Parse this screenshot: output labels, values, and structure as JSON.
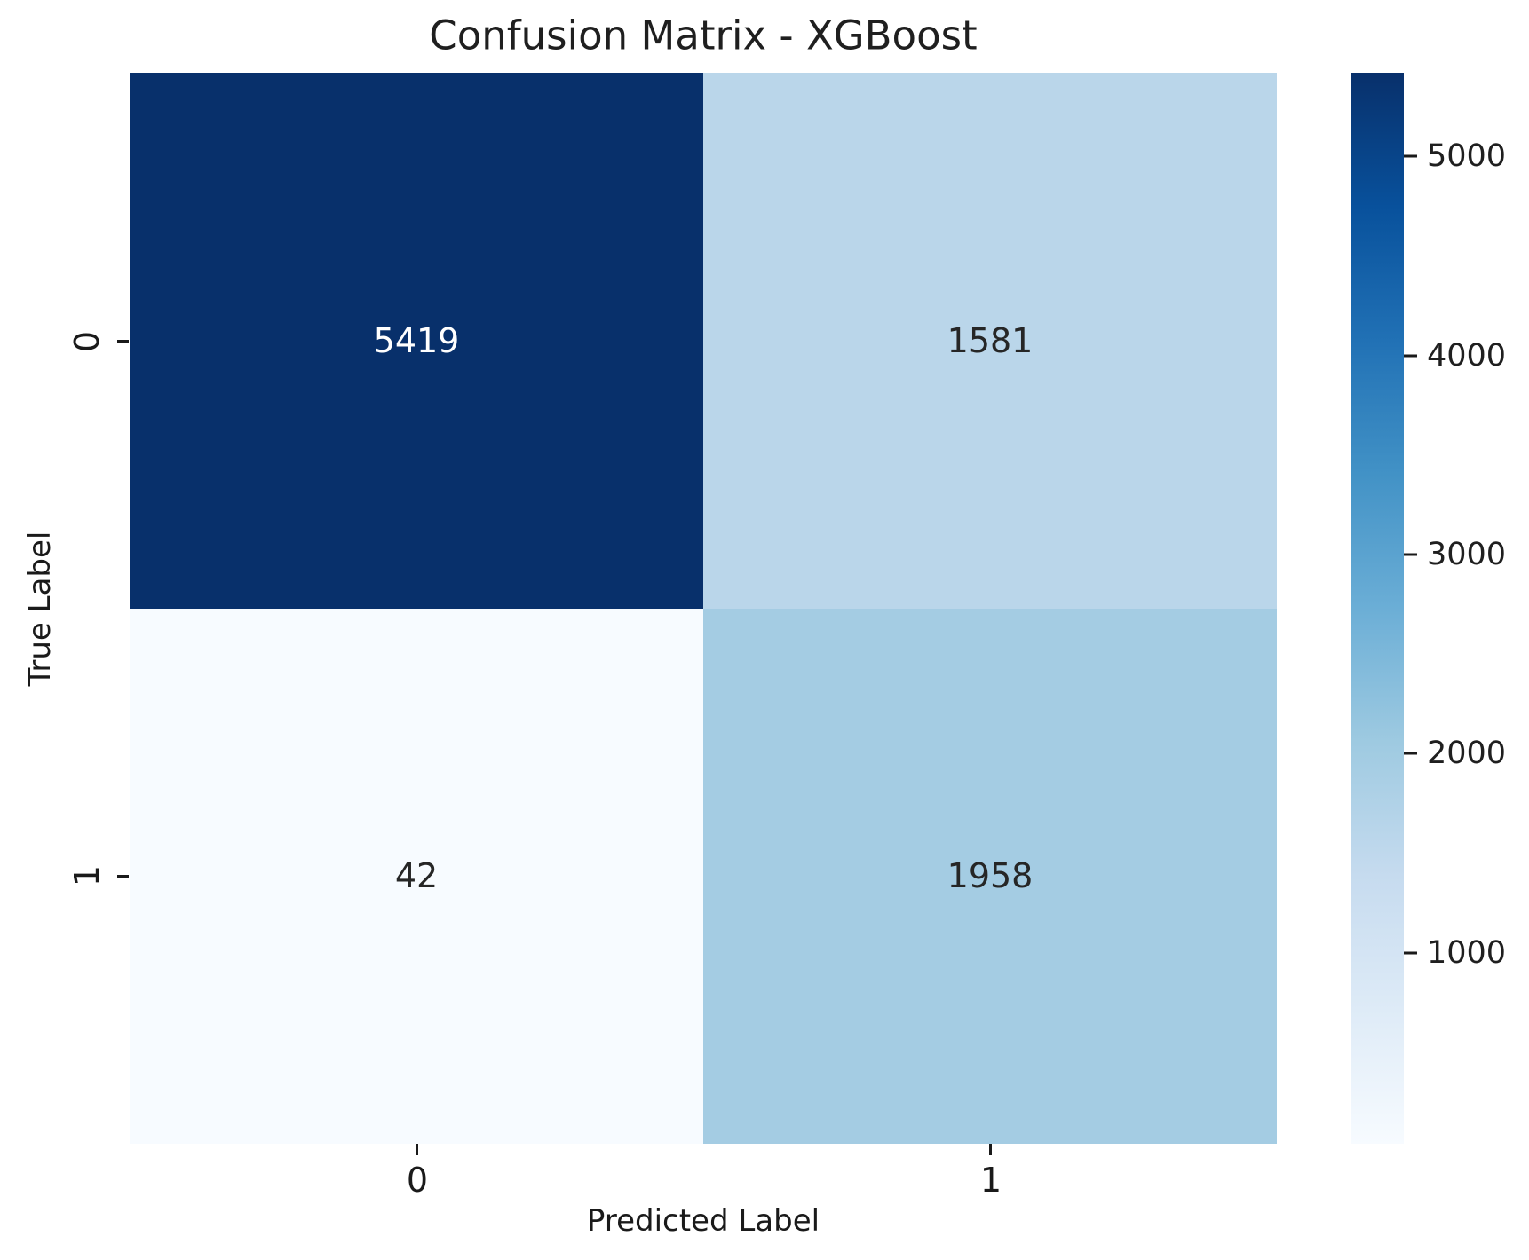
{
  "figure": {
    "title": "Confusion Matrix - XGBoost",
    "xlabel": "Predicted Label",
    "ylabel": "True Label"
  },
  "axes": {
    "x_ticks": [
      "0",
      "1"
    ],
    "y_ticks": [
      "0",
      "1"
    ]
  },
  "cells": [
    {
      "value": "5419",
      "bg": "#08306b",
      "fg": "#ffffff"
    },
    {
      "value": "1581",
      "bg": "#bad6ea",
      "fg": "#262626"
    },
    {
      "value": "42",
      "bg": "#f7fbff",
      "fg": "#262626"
    },
    {
      "value": "1958",
      "bg": "#a4cce3",
      "fg": "#262626"
    }
  ],
  "colorbar": {
    "vmin": 42,
    "vmax": 5419,
    "tick_labels": [
      "5000",
      "4000",
      "3000",
      "2000",
      "1000"
    ],
    "tick_values": [
      5000,
      4000,
      3000,
      2000,
      1000
    ],
    "gradient_stops": [
      "#f7fbff 0%",
      "#deebf7 12.5%",
      "#c6dbef 25%",
      "#9ecae1 37.5%",
      "#6baed6 50%",
      "#4292c6 62.5%",
      "#2171b5 75%",
      "#08519c 87.5%",
      "#08306b 100%"
    ]
  },
  "chart_data": {
    "type": "heatmap",
    "title": "Confusion Matrix - XGBoost",
    "xlabel": "Predicted Label",
    "ylabel": "True Label",
    "x_categories": [
      "0",
      "1"
    ],
    "y_categories": [
      "0",
      "1"
    ],
    "values": [
      [
        5419,
        1581
      ],
      [
        42,
        1958
      ]
    ],
    "colormap": "Blues",
    "vmin": 42,
    "vmax": 5419,
    "colorbar_ticks": [
      1000,
      2000,
      3000,
      4000,
      5000
    ],
    "colorbar_position": "right",
    "grid": false,
    "legend": "none"
  }
}
